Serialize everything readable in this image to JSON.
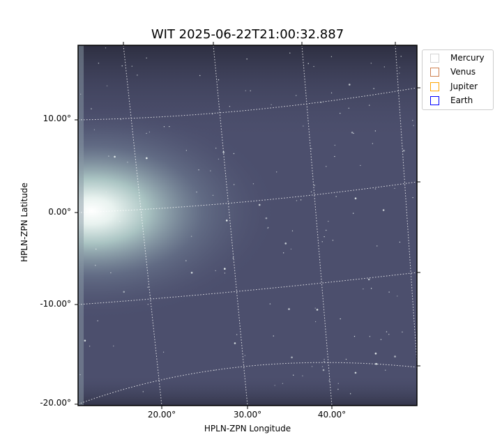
{
  "chart_data": {
    "type": "image",
    "title": "WIT 2025-06-22T21:00:32.887",
    "xlabel": "HPLN-ZPN Longitude",
    "ylabel": "HPLN-ZPN Latitude",
    "x_ticks": [
      "20.00°",
      "30.00°",
      "40.00°"
    ],
    "y_ticks": [
      "10.00°",
      "0.00°",
      "-10.00°",
      "-20.00°"
    ],
    "grid": true,
    "grid_style": "dotted white",
    "colormap": "bone",
    "legend": {
      "placement": "outside-top-right",
      "entries": [
        {
          "name": "Mercury",
          "color": "#d3d3d3"
        },
        {
          "name": "Venus",
          "color": "#cd7f4f"
        },
        {
          "name": "Jupiter",
          "color": "#ffa500"
        },
        {
          "name": "Earth",
          "color": "#0000ff"
        }
      ]
    }
  }
}
